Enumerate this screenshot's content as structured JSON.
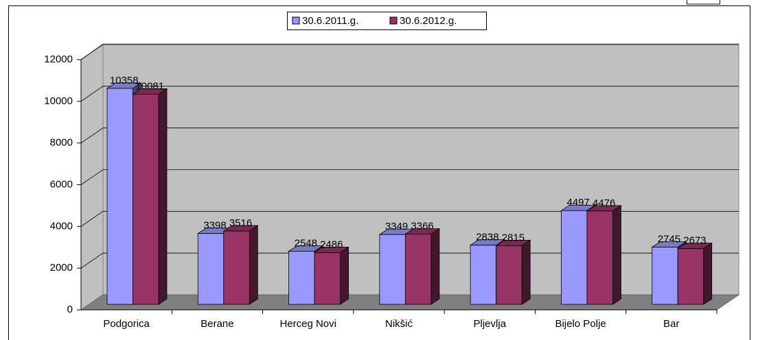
{
  "chart_data": {
    "type": "bar",
    "categories": [
      "Podgorica",
      "Berane",
      "Herceg Novi",
      "Nikšić",
      "Pljevlja",
      "Bijelo Polje",
      "Bar"
    ],
    "series": [
      {
        "name": "30.6.2011.g.",
        "color": "#9999ff",
        "values": [
          10358,
          3398,
          2548,
          3349,
          2838,
          4497,
          2745
        ]
      },
      {
        "name": "30.6.2012.g.",
        "color": "#993366",
        "values": [
          10081,
          3516,
          2486,
          3366,
          2815,
          4476,
          2673
        ]
      }
    ],
    "ylim": [
      0,
      12000
    ],
    "yticks": [
      0,
      2000,
      4000,
      6000,
      8000,
      10000,
      12000
    ],
    "grid": true,
    "legend": "top"
  }
}
